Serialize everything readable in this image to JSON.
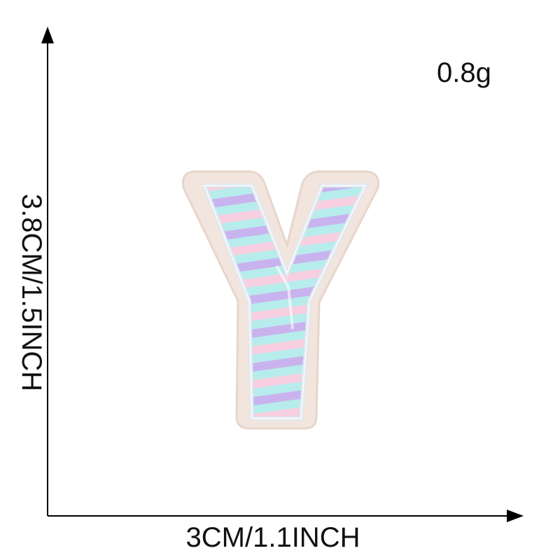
{
  "product": {
    "weight_label": "0.8g",
    "width_label": "3CM/1.1INCH",
    "height_label": "3.8CM/1.5INCH",
    "item": "letter-y-patch-icon"
  },
  "colors": {
    "axis": "#000000",
    "text": "#111111",
    "patch_edge": "#f1e5dd",
    "stripe_cyan": "#b7ecec",
    "stripe_pink": "#f7cfe0",
    "stripe_purple": "#c9b3ee"
  }
}
